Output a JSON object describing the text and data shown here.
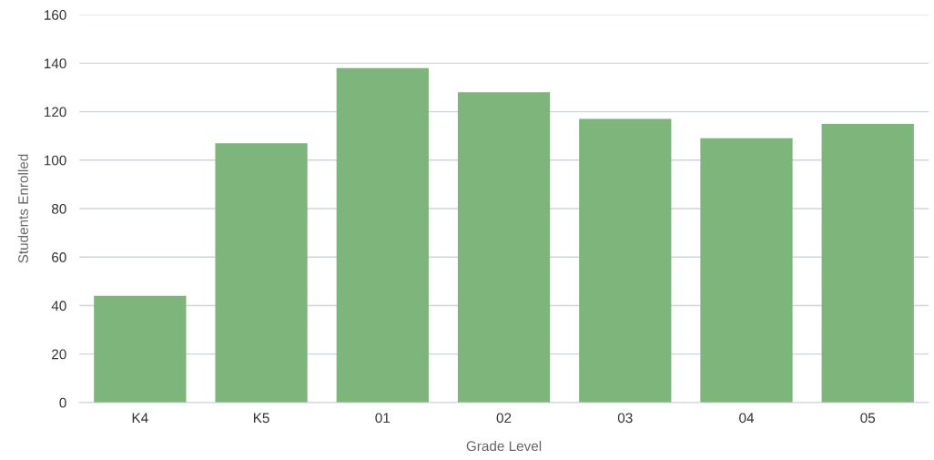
{
  "chart_data": {
    "type": "bar",
    "xlabel": "Grade Level",
    "ylabel": "Students Enrolled",
    "categories": [
      "K4",
      "K5",
      "01",
      "02",
      "03",
      "04",
      "05"
    ],
    "values": [
      44,
      107,
      138,
      128,
      117,
      109,
      115
    ],
    "color": "#7db57a",
    "ylim": [
      0,
      160
    ],
    "yticks": [
      0,
      20,
      40,
      60,
      80,
      100,
      120,
      140,
      160
    ],
    "grid": "y",
    "legend": false
  }
}
